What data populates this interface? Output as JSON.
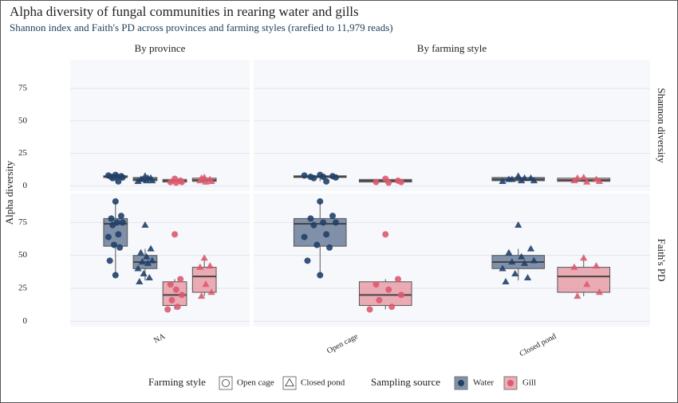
{
  "chart_data": {
    "type": "box",
    "title": "Alpha diversity of fungal communities in rearing water and gills",
    "subtitle": "Shannon index and Faith's PD across provinces and farming styles (rarefied to 11,979 reads)",
    "y_label": "Alpha diversity",
    "rows": [
      "Shannon diversity",
      "Faith's PD"
    ],
    "ylim": [
      -4,
      97
    ],
    "yticks": [
      0,
      25,
      50,
      75
    ],
    "grid": true,
    "series": [
      {
        "name": "Water",
        "color": "#4d6484",
        "point_color": "#22406a"
      },
      {
        "name": "Gill",
        "color": "#e58a97",
        "point_color": "#db5a6e"
      }
    ],
    "legend": {
      "style_title": "Farming style",
      "styles": [
        {
          "name": "Open cage",
          "shape": "circle"
        },
        {
          "name": "Closed pond",
          "shape": "triangle"
        }
      ],
      "source_title": "Sampling source"
    },
    "columns": [
      {
        "label": "By province",
        "categories": [
          "NA"
        ],
        "panels": [
          [
            [
              [
                {
                  "lower": 3.5,
                  "q1": 6.5,
                  "median": 7,
                  "q3": 7.8,
                  "upper": 8.5,
                  "points": [
                    8.5,
                    7.5,
                    7,
                    7,
                    6.5,
                    6,
                    3.5,
                    8
                  ]
                },
                {
                  "lower": 3.5,
                  "q1": 4,
                  "median": 5,
                  "q3": 6.5,
                  "upper": 7.5,
                  "points": [
                    7.5,
                    6,
                    5,
                    4,
                    4,
                    5,
                    6,
                    3.5
                  ]
                }
              ],
              [
                {
                  "lower": 2.5,
                  "q1": 3,
                  "median": 4,
                  "q3": 5,
                  "upper": 5.5,
                  "points": [
                    5.5,
                    4,
                    3,
                    2.5,
                    3
                  ]
                },
                {
                  "lower": 3,
                  "q1": 3.5,
                  "median": 4.5,
                  "q3": 6,
                  "upper": 6.5,
                  "points": [
                    6.5,
                    5,
                    4,
                    3,
                    3.5,
                    6
                  ]
                }
              ]
            ]
          ],
          [
            [
              [
                {
                  "lower": 35,
                  "q1": 57,
                  "median": 74,
                  "q3": 78,
                  "upper": 91,
                  "points": [
                    91,
                    80,
                    78,
                    75,
                    75,
                    73,
                    66,
                    64,
                    58,
                    56,
                    46,
                    35
                  ]
                },
                {
                  "lower": 31,
                  "q1": 40,
                  "median": 45,
                  "q3": 50,
                  "upper": 55,
                  "points": [
                    73,
                    55,
                    52,
                    49,
                    46,
                    45,
                    44,
                    40,
                    36,
                    33,
                    30
                  ]
                }
              ],
              [
                {
                  "lower": 9,
                  "q1": 12,
                  "median": 20,
                  "q3": 30,
                  "upper": 32,
                  "points": [
                    66,
                    32,
                    28,
                    24,
                    20,
                    16,
                    11,
                    9
                  ]
                },
                {
                  "lower": 19,
                  "q1": 22,
                  "median": 34,
                  "q3": 41,
                  "upper": 48,
                  "points": [
                    48,
                    42,
                    41,
                    28,
                    22,
                    19
                  ]
                }
              ]
            ]
          ]
        ]
      },
      {
        "label": "By farming style",
        "categories": [
          "Open cage",
          "Closed pond"
        ],
        "panels": [
          [
            [
              [
                {
                  "lower": 3.5,
                  "q1": 6.5,
                  "median": 7,
                  "q3": 7.8,
                  "upper": 8.5,
                  "points": [
                    8.5,
                    7.5,
                    7,
                    7,
                    6.5,
                    6,
                    3.5,
                    8
                  ]
                },
                null
              ],
              [
                {
                  "lower": 2.5,
                  "q1": 3,
                  "median": 4,
                  "q3": 5,
                  "upper": 5.5,
                  "points": [
                    5.5,
                    4,
                    3,
                    2.5,
                    3
                  ]
                },
                null
              ]
            ],
            [
              [
                null,
                {
                  "lower": 3.5,
                  "q1": 4,
                  "median": 5,
                  "q3": 6.5,
                  "upper": 7.5,
                  "points": [
                    7.5,
                    6,
                    5,
                    4,
                    4,
                    5,
                    6,
                    3.5
                  ]
                }
              ],
              [
                null,
                {
                  "lower": 3,
                  "q1": 3.5,
                  "median": 4.5,
                  "q3": 6,
                  "upper": 6.5,
                  "points": [
                    6.5,
                    5,
                    4,
                    3,
                    3.5,
                    6
                  ]
                }
              ]
            ]
          ],
          [
            [
              [
                {
                  "lower": 35,
                  "q1": 57,
                  "median": 74,
                  "q3": 78,
                  "upper": 91,
                  "points": [
                    91,
                    80,
                    78,
                    75,
                    75,
                    73,
                    66,
                    64,
                    58,
                    56,
                    46,
                    35
                  ]
                },
                null
              ],
              [
                {
                  "lower": 9,
                  "q1": 12,
                  "median": 20,
                  "q3": 30,
                  "upper": 32,
                  "points": [
                    66,
                    32,
                    28,
                    24,
                    20,
                    16,
                    11,
                    9
                  ]
                },
                null
              ]
            ],
            [
              [
                null,
                {
                  "lower": 31,
                  "q1": 40,
                  "median": 45,
                  "q3": 50,
                  "upper": 55,
                  "points": [
                    73,
                    55,
                    52,
                    49,
                    46,
                    45,
                    44,
                    40,
                    36,
                    33,
                    30
                  ]
                }
              ],
              [
                null,
                {
                  "lower": 19,
                  "q1": 22,
                  "median": 34,
                  "q3": 41,
                  "upper": 48,
                  "points": [
                    48,
                    42,
                    41,
                    28,
                    22,
                    19
                  ]
                }
              ]
            ]
          ]
        ]
      }
    ]
  }
}
